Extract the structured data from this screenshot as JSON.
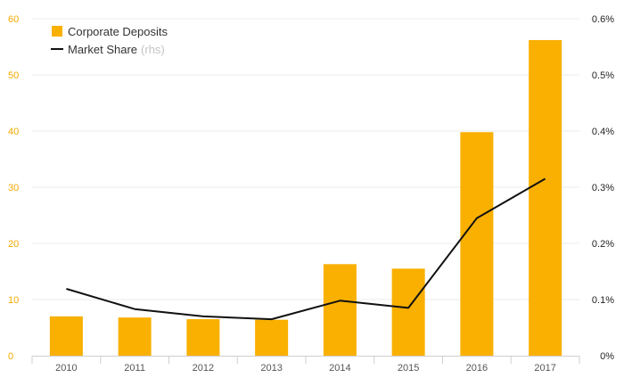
{
  "chart_data": {
    "type": "bar",
    "categories": [
      "2010",
      "2011",
      "2012",
      "2013",
      "2014",
      "2015",
      "2016",
      "2017"
    ],
    "series": [
      {
        "name": "Corporate Deposits",
        "type": "bar",
        "axis": "left",
        "color": "#f9b000",
        "values": [
          7.0,
          6.8,
          6.5,
          6.4,
          16.3,
          15.5,
          39.8,
          56.2
        ]
      },
      {
        "name": "Market Share",
        "legend_suffix": "(rhs)",
        "type": "line",
        "axis": "right",
        "color": "#111111",
        "values": [
          0.119,
          0.083,
          0.07,
          0.065,
          0.098,
          0.085,
          0.245,
          0.315
        ]
      }
    ],
    "left_axis": {
      "ylim": [
        0,
        60
      ],
      "ticks": [
        "0",
        "10",
        "20",
        "30",
        "40",
        "50",
        "60"
      ],
      "color": "#f2a900"
    },
    "right_axis": {
      "ylim": [
        0,
        0.6
      ],
      "ticks": [
        "0%",
        "0.1%",
        "0.2%",
        "0.3%",
        "0.4%",
        "0.5%",
        "0.6%"
      ]
    },
    "grid": true,
    "legend_position": "top-left",
    "title": "",
    "xlabel": "",
    "ylabel": ""
  }
}
